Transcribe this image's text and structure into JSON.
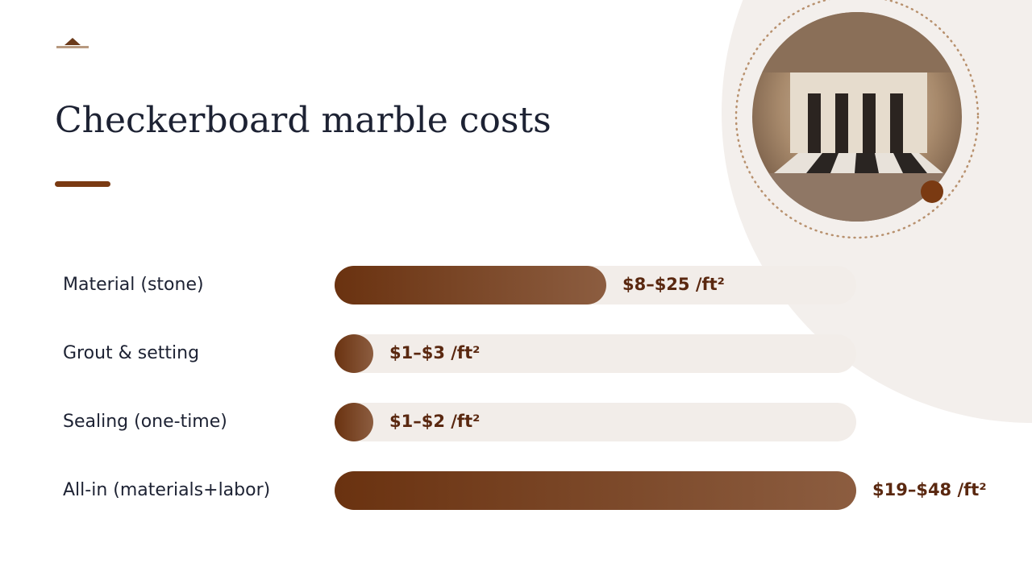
{
  "chart_data": {
    "type": "range-bar",
    "title": "Checkerboard marble costs",
    "categories": [
      "Material (stone)",
      "Grout & setting",
      "Sealing (one-time)",
      "All-in (materials+labor)"
    ],
    "values": [
      25,
      3,
      2,
      48
    ],
    "value_labels": [
      "$8–$25 /ft²",
      "$1–$3 /ft²",
      "$1–$2 /ft²",
      "$19–$48 /ft²"
    ],
    "xlim": [
      0,
      48
    ],
    "colors": [
      "#6a3210",
      "#8c5d40"
    ],
    "track_color": "#f2ede9"
  }
}
